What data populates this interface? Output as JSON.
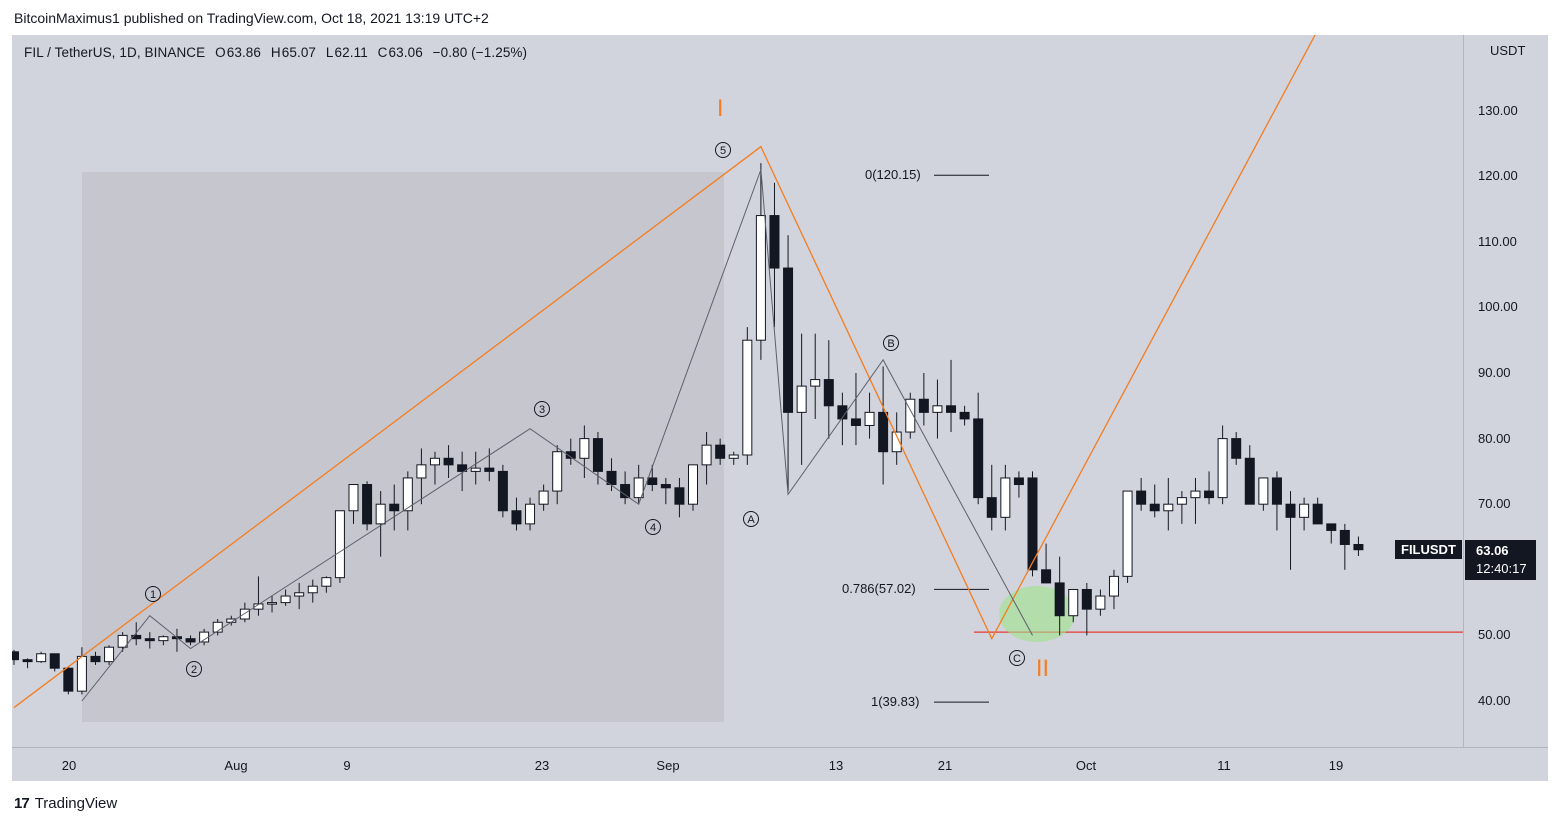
{
  "header": {
    "text": "BitcoinMaximus1 published on TradingView.com, Oct 18, 2021 13:19 UTC+2"
  },
  "symbol": {
    "name": "FIL / TetherUS, 1D, BINANCE",
    "o_label": "O",
    "o": "63.86",
    "h_label": "H",
    "h": "65.07",
    "l_label": "L",
    "l": "62.11",
    "c_label": "C",
    "c": "63.06",
    "change": "−0.80 (−1.25%)"
  },
  "ticker_tag": "FILUSDT",
  "last_price": {
    "price": "63.06",
    "countdown": "12:40:17"
  },
  "currency": "USDT",
  "footer": {
    "brand": "TradingView",
    "logo_text": "17"
  },
  "colors": {
    "impulse_line": "#f57c1f",
    "support_line": "#e53935",
    "highlight": "#9ee38a",
    "box": "#c1c3ca"
  },
  "annotations": {
    "wave_I": "I",
    "wave_II": "II",
    "sub_1": "1",
    "sub_2": "2",
    "sub_3": "3",
    "sub_4": "4",
    "sub_5": "5",
    "sub_A": "A",
    "sub_B": "B",
    "sub_C": "C",
    "fib_0": "0(120.15)",
    "fib_786": "0.786(57.02)",
    "fib_1": "1(39.83)"
  },
  "chart_data": {
    "type": "candlestick",
    "title": "FIL / TetherUS, 1D, BINANCE",
    "y_ticks": [
      "40.00",
      "50.00",
      "60.00",
      "70.00",
      "80.00",
      "90.00",
      "100.00",
      "110.00",
      "120.00",
      "130.00"
    ],
    "ylim": [
      32,
      146
    ],
    "x_ticks": [
      "20",
      "Aug",
      "9",
      "23",
      "Sep",
      "13",
      "21",
      "Oct",
      "11",
      "19"
    ],
    "support_level": 50.5,
    "fib_levels": [
      {
        "label": "0(120.15)",
        "value": 120.15
      },
      {
        "label": "0.786(57.02)",
        "value": 57.02
      },
      {
        "label": "1(39.83)",
        "value": 39.83
      }
    ],
    "candles": [
      [
        47.5,
        47.8,
        45.5,
        46.3
      ],
      [
        46.3,
        46.5,
        45,
        46
      ],
      [
        46,
        47.5,
        45.8,
        47.2
      ],
      [
        47.2,
        47.2,
        44.5,
        45
      ],
      [
        45,
        45.2,
        41,
        41.5
      ],
      [
        41.5,
        48.2,
        41,
        46.8
      ],
      [
        46.8,
        47.5,
        45.5,
        46
      ],
      [
        46,
        48.5,
        45.5,
        48.2
      ],
      [
        48.2,
        50.5,
        47.5,
        50
      ],
      [
        50,
        52,
        48.5,
        49.5
      ],
      [
        49.5,
        50.5,
        48,
        49.2
      ],
      [
        49.2,
        50,
        48.5,
        49.8
      ],
      [
        49.8,
        51,
        47.5,
        49.5
      ],
      [
        49.5,
        50,
        48.5,
        49
      ],
      [
        49,
        51,
        48.5,
        50.5
      ],
      [
        50.5,
        52.5,
        50,
        52
      ],
      [
        52,
        53,
        51.5,
        52.5
      ],
      [
        52.5,
        55,
        52,
        54
      ],
      [
        54,
        59,
        53,
        54.8
      ],
      [
        54.8,
        56,
        53.5,
        55
      ],
      [
        55,
        57,
        54.5,
        56
      ],
      [
        56,
        58,
        54,
        56.5
      ],
      [
        56.5,
        58.5,
        55,
        57.5
      ],
      [
        57.5,
        59,
        56.5,
        58.8
      ],
      [
        58.8,
        68,
        58,
        69
      ],
      [
        69,
        73,
        67,
        73
      ],
      [
        73,
        73.5,
        66,
        67
      ],
      [
        67,
        72,
        62,
        70
      ],
      [
        70,
        73,
        66,
        69
      ],
      [
        69,
        75,
        66,
        74
      ],
      [
        74,
        78.5,
        70,
        76
      ],
      [
        76,
        78,
        73,
        77
      ],
      [
        77,
        79,
        74,
        76
      ],
      [
        76,
        78,
        72,
        75
      ],
      [
        75,
        78,
        73,
        75.5
      ],
      [
        75.5,
        78.5,
        73.5,
        75
      ],
      [
        75,
        76,
        68,
        69
      ],
      [
        69,
        71,
        66,
        67
      ],
      [
        67,
        71,
        66,
        70
      ],
      [
        70,
        73,
        69,
        72
      ],
      [
        72,
        79,
        70,
        78
      ],
      [
        78,
        80,
        76,
        77
      ],
      [
        77,
        82,
        74,
        80
      ],
      [
        80,
        81,
        73,
        75
      ],
      [
        75,
        77,
        72,
        73
      ],
      [
        73,
        75,
        70,
        71
      ],
      [
        71,
        76,
        70,
        74
      ],
      [
        74,
        76,
        72,
        73
      ],
      [
        73,
        74,
        70,
        72.5
      ],
      [
        72.5,
        74,
        68,
        70
      ],
      [
        70,
        76,
        69,
        76
      ],
      [
        76,
        81,
        73,
        79
      ],
      [
        79,
        80,
        76,
        77
      ],
      [
        77,
        78,
        76,
        77.5
      ],
      [
        77.5,
        97,
        76,
        95
      ],
      [
        95,
        122,
        92,
        114
      ],
      [
        114,
        119,
        97,
        106
      ],
      [
        106,
        111,
        72,
        84
      ],
      [
        84,
        96,
        76,
        88
      ],
      [
        88,
        96,
        83,
        89
      ],
      [
        89,
        95,
        80,
        85
      ],
      [
        85,
        87,
        79,
        83
      ],
      [
        83,
        90,
        79,
        82
      ],
      [
        82,
        87,
        80,
        84
      ],
      [
        84,
        91,
        73,
        78
      ],
      [
        78,
        84,
        76,
        81
      ],
      [
        81,
        87,
        80,
        86
      ],
      [
        86,
        90,
        82,
        84
      ],
      [
        84,
        89,
        80,
        85
      ],
      [
        85,
        92,
        81,
        84
      ],
      [
        84,
        85,
        82,
        83
      ],
      [
        83,
        87,
        70,
        71
      ],
      [
        71,
        76,
        66,
        68
      ],
      [
        68,
        76,
        66,
        74
      ],
      [
        74,
        75,
        71,
        73
      ],
      [
        74,
        75,
        59,
        60
      ],
      [
        60,
        64,
        58,
        58
      ],
      [
        58,
        62,
        50,
        53
      ],
      [
        53,
        57,
        52,
        57
      ],
      [
        57,
        58,
        50,
        54
      ],
      [
        54,
        57,
        53,
        56
      ],
      [
        56,
        60,
        54,
        59
      ],
      [
        59,
        72,
        58,
        72
      ],
      [
        72,
        74,
        69,
        70
      ],
      [
        70,
        73,
        68,
        69
      ],
      [
        69,
        74,
        66,
        70
      ],
      [
        70,
        72,
        67,
        71
      ],
      [
        71,
        74,
        67,
        72
      ],
      [
        72,
        75,
        70,
        71
      ],
      [
        71,
        82,
        70,
        80
      ],
      [
        80,
        81,
        76,
        77
      ],
      [
        77,
        79,
        70,
        70
      ],
      [
        70,
        74,
        69,
        74
      ],
      [
        74,
        75,
        66,
        70
      ],
      [
        70,
        72,
        60,
        68
      ],
      [
        68,
        71,
        66,
        70
      ],
      [
        70,
        71,
        67,
        67
      ],
      [
        67,
        67,
        64,
        66
      ],
      [
        66,
        67,
        60,
        63.86
      ],
      [
        63.86,
        65.07,
        62.11,
        63.06
      ]
    ],
    "wave_impulse_points": [
      [
        0,
        39
      ],
      [
        55,
        124.5
      ],
      [
        72,
        49.5
      ],
      [
        98,
        150
      ]
    ],
    "wave_sub_points": [
      [
        5,
        40
      ],
      [
        10,
        53
      ],
      [
        13,
        48
      ],
      [
        38,
        81.5
      ],
      [
        46,
        70
      ],
      [
        55,
        121
      ],
      [
        57,
        71.5
      ],
      [
        64,
        92
      ],
      [
        75,
        50
      ]
    ]
  }
}
